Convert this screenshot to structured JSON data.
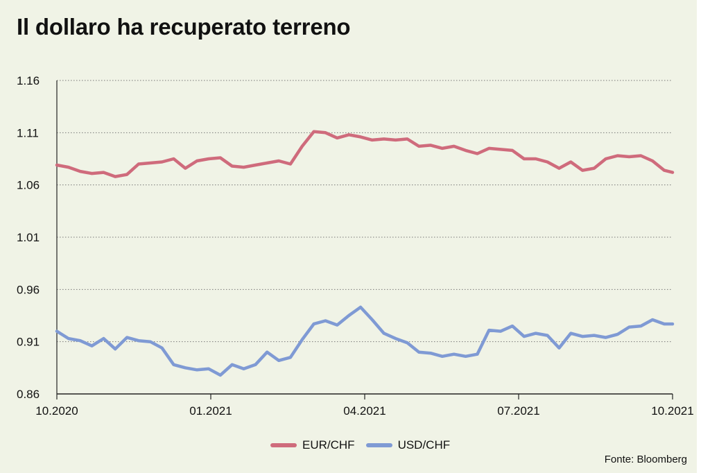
{
  "chart_data": {
    "type": "line",
    "title": "Il dollaro ha recuperato terreno",
    "source": "Fonte: Bloomberg",
    "ylim": [
      0.86,
      1.16
    ],
    "y_ticks": [
      "1.16",
      "1.11",
      "1.06",
      "1.01",
      "0.96",
      "0.91",
      "0.86"
    ],
    "x_ticks": [
      "10.2020",
      "01.2021",
      "04.2021",
      "07.2021",
      "10.2021"
    ],
    "x_range": [
      "2020-10-01",
      "2021-10-05"
    ],
    "grid": "horizontal dotted",
    "legend_position": "bottom",
    "series": [
      {
        "name": "EUR/CHF",
        "color": "#cf6b7c",
        "points": [
          [
            "2020-10-01",
            1.079
          ],
          [
            "2020-10-08",
            1.077
          ],
          [
            "2020-10-15",
            1.073
          ],
          [
            "2020-10-22",
            1.071
          ],
          [
            "2020-10-29",
            1.072
          ],
          [
            "2020-11-05",
            1.068
          ],
          [
            "2020-11-12",
            1.07
          ],
          [
            "2020-11-19",
            1.08
          ],
          [
            "2020-11-26",
            1.081
          ],
          [
            "2020-12-03",
            1.082
          ],
          [
            "2020-12-10",
            1.085
          ],
          [
            "2020-12-17",
            1.076
          ],
          [
            "2020-12-24",
            1.083
          ],
          [
            "2020-12-31",
            1.085
          ],
          [
            "2021-01-07",
            1.086
          ],
          [
            "2021-01-14",
            1.078
          ],
          [
            "2021-01-21",
            1.077
          ],
          [
            "2021-01-28",
            1.079
          ],
          [
            "2021-02-04",
            1.081
          ],
          [
            "2021-02-11",
            1.083
          ],
          [
            "2021-02-18",
            1.08
          ],
          [
            "2021-02-25",
            1.097
          ],
          [
            "2021-03-04",
            1.111
          ],
          [
            "2021-03-11",
            1.11
          ],
          [
            "2021-03-18",
            1.105
          ],
          [
            "2021-03-25",
            1.108
          ],
          [
            "2021-04-01",
            1.106
          ],
          [
            "2021-04-08",
            1.103
          ],
          [
            "2021-04-15",
            1.104
          ],
          [
            "2021-04-22",
            1.103
          ],
          [
            "2021-04-29",
            1.104
          ],
          [
            "2021-05-06",
            1.097
          ],
          [
            "2021-05-13",
            1.098
          ],
          [
            "2021-05-20",
            1.095
          ],
          [
            "2021-05-27",
            1.097
          ],
          [
            "2021-06-03",
            1.093
          ],
          [
            "2021-06-10",
            1.09
          ],
          [
            "2021-06-17",
            1.095
          ],
          [
            "2021-06-24",
            1.094
          ],
          [
            "2021-07-01",
            1.093
          ],
          [
            "2021-07-08",
            1.085
          ],
          [
            "2021-07-15",
            1.085
          ],
          [
            "2021-07-22",
            1.082
          ],
          [
            "2021-07-29",
            1.076
          ],
          [
            "2021-08-05",
            1.082
          ],
          [
            "2021-08-12",
            1.074
          ],
          [
            "2021-08-19",
            1.076
          ],
          [
            "2021-08-26",
            1.085
          ],
          [
            "2021-09-02",
            1.088
          ],
          [
            "2021-09-09",
            1.087
          ],
          [
            "2021-09-16",
            1.088
          ],
          [
            "2021-09-23",
            1.083
          ],
          [
            "2021-09-30",
            1.074
          ],
          [
            "2021-10-05",
            1.072
          ]
        ]
      },
      {
        "name": "USD/CHF",
        "color": "#7f9ad4",
        "points": [
          [
            "2020-10-01",
            0.92
          ],
          [
            "2020-10-08",
            0.913
          ],
          [
            "2020-10-15",
            0.911
          ],
          [
            "2020-10-22",
            0.906
          ],
          [
            "2020-10-29",
            0.913
          ],
          [
            "2020-11-05",
            0.903
          ],
          [
            "2020-11-12",
            0.914
          ],
          [
            "2020-11-19",
            0.911
          ],
          [
            "2020-11-26",
            0.91
          ],
          [
            "2020-12-03",
            0.904
          ],
          [
            "2020-12-10",
            0.888
          ],
          [
            "2020-12-17",
            0.885
          ],
          [
            "2020-12-24",
            0.883
          ],
          [
            "2020-12-31",
            0.884
          ],
          [
            "2021-01-07",
            0.878
          ],
          [
            "2021-01-14",
            0.888
          ],
          [
            "2021-01-21",
            0.884
          ],
          [
            "2021-01-28",
            0.888
          ],
          [
            "2021-02-04",
            0.9
          ],
          [
            "2021-02-11",
            0.892
          ],
          [
            "2021-02-18",
            0.895
          ],
          [
            "2021-02-25",
            0.912
          ],
          [
            "2021-03-04",
            0.927
          ],
          [
            "2021-03-11",
            0.93
          ],
          [
            "2021-03-18",
            0.926
          ],
          [
            "2021-03-25",
            0.935
          ],
          [
            "2021-04-01",
            0.943
          ],
          [
            "2021-04-08",
            0.931
          ],
          [
            "2021-04-15",
            0.918
          ],
          [
            "2021-04-22",
            0.913
          ],
          [
            "2021-04-29",
            0.909
          ],
          [
            "2021-05-06",
            0.9
          ],
          [
            "2021-05-13",
            0.899
          ],
          [
            "2021-05-20",
            0.896
          ],
          [
            "2021-05-27",
            0.898
          ],
          [
            "2021-06-03",
            0.896
          ],
          [
            "2021-06-10",
            0.898
          ],
          [
            "2021-06-17",
            0.921
          ],
          [
            "2021-06-24",
            0.92
          ],
          [
            "2021-07-01",
            0.925
          ],
          [
            "2021-07-08",
            0.915
          ],
          [
            "2021-07-15",
            0.918
          ],
          [
            "2021-07-22",
            0.916
          ],
          [
            "2021-07-29",
            0.904
          ],
          [
            "2021-08-05",
            0.918
          ],
          [
            "2021-08-12",
            0.915
          ],
          [
            "2021-08-19",
            0.916
          ],
          [
            "2021-08-26",
            0.914
          ],
          [
            "2021-09-02",
            0.917
          ],
          [
            "2021-09-09",
            0.924
          ],
          [
            "2021-09-16",
            0.925
          ],
          [
            "2021-09-23",
            0.931
          ],
          [
            "2021-09-30",
            0.927
          ],
          [
            "2021-10-05",
            0.927
          ]
        ]
      }
    ]
  }
}
